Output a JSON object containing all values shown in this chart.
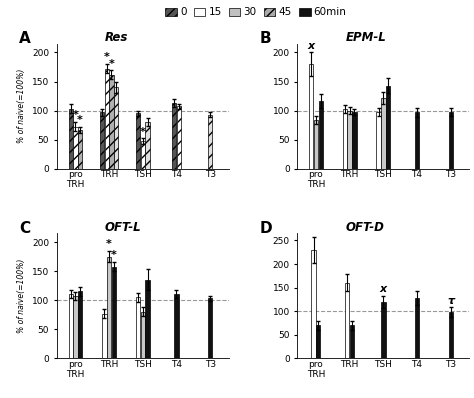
{
  "time_labels": [
    "0",
    "15",
    "30",
    "45",
    "60min"
  ],
  "patterns": [
    {
      "color": "#606060",
      "hatch": "///",
      "edgecolor": "#000000"
    },
    {
      "color": "#ffffff",
      "hatch": "///",
      "edgecolor": "#000000"
    },
    {
      "color": "#b0b0b0",
      "hatch": "///",
      "edgecolor": "#000000"
    },
    {
      "color": "#ffffff",
      "hatch": "///",
      "edgecolor": "#000000"
    },
    {
      "color": "#111111",
      "hatch": "",
      "edgecolor": "#000000"
    }
  ],
  "panels": {
    "A": {
      "title": "Res",
      "label": "A",
      "ylim": [
        0,
        215
      ],
      "yticks": [
        0,
        50,
        100,
        150,
        200
      ],
      "ylabel": "% of naive(=100%)",
      "cats": [
        "proTRH",
        "TRH",
        "TSH",
        "T4",
        "T3"
      ],
      "bars": {
        "proTRH": [
          [
            0,
            103,
            8,
            false
          ],
          [
            1,
            72,
            8,
            true
          ],
          [
            2,
            67,
            5,
            true
          ]
        ],
        "TRH": [
          [
            0,
            97,
            6,
            false
          ],
          [
            1,
            172,
            8,
            true
          ],
          [
            2,
            162,
            7,
            true
          ],
          [
            3,
            140,
            10,
            false
          ]
        ],
        "TSH": [
          [
            0,
            95,
            5,
            false
          ],
          [
            1,
            47,
            5,
            true
          ],
          [
            3,
            80,
            7,
            false
          ]
        ],
        "T4": [
          [
            0,
            113,
            7,
            false
          ],
          [
            1,
            107,
            5,
            false
          ]
        ],
        "T3": [
          [
            3,
            93,
            5,
            false
          ]
        ]
      },
      "annots": {
        "proTRH": [
          [
            1,
            "*"
          ],
          [
            2,
            "*"
          ]
        ],
        "TRH": [
          [
            1,
            "*"
          ],
          [
            2,
            "*"
          ]
        ],
        "TSH": [
          [
            1,
            "*"
          ]
        ]
      }
    },
    "B": {
      "title": "EPM-L",
      "label": "B",
      "ylim": [
        0,
        215
      ],
      "yticks": [
        0,
        50,
        100,
        150,
        200
      ],
      "ylabel": "% of naive (=100%)",
      "cats": [
        "proTRH",
        "TRH",
        "TSH",
        "T4",
        "T3"
      ],
      "bars": {
        "proTRH": [
          [
            1,
            180,
            20,
            false
          ],
          [
            2,
            83,
            7,
            false
          ],
          [
            4,
            117,
            12,
            false
          ]
        ],
        "TRH": [
          [
            1,
            102,
            7,
            false
          ],
          [
            2,
            100,
            6,
            false
          ],
          [
            4,
            97,
            5,
            false
          ]
        ],
        "TSH": [
          [
            1,
            97,
            7,
            false
          ],
          [
            2,
            122,
            10,
            false
          ],
          [
            4,
            143,
            13,
            false
          ]
        ],
        "T4": [
          [
            4,
            97,
            8,
            false
          ]
        ],
        "T3": [
          [
            4,
            97,
            7,
            false
          ]
        ]
      },
      "annots": {
        "proTRH": [
          [
            0,
            "x"
          ]
        ]
      }
    },
    "C": {
      "title": "OFT-L",
      "label": "C",
      "ylim": [
        0,
        215
      ],
      "yticks": [
        0,
        50,
        100,
        150,
        200
      ],
      "ylabel": "% of naive(=100%)",
      "cats": [
        "proTRH",
        "TRH",
        "TSH",
        "T4",
        "T3"
      ],
      "bars": {
        "proTRH": [
          [
            1,
            110,
            7,
            false
          ],
          [
            2,
            107,
            7,
            false
          ],
          [
            4,
            115,
            8,
            false
          ]
        ],
        "TRH": [
          [
            1,
            77,
            7,
            false
          ],
          [
            2,
            175,
            10,
            true
          ],
          [
            4,
            158,
            8,
            true
          ]
        ],
        "TSH": [
          [
            1,
            105,
            8,
            false
          ],
          [
            2,
            80,
            8,
            false
          ],
          [
            4,
            135,
            18,
            false
          ]
        ],
        "T4": [
          [
            4,
            110,
            7,
            false
          ]
        ],
        "T3": [
          [
            4,
            103,
            5,
            false
          ]
        ]
      },
      "annots": {
        "TRH": [
          [
            1,
            "*"
          ],
          [
            2,
            "*"
          ]
        ]
      }
    },
    "D": {
      "title": "OFT-D",
      "label": "D",
      "ylim": [
        0,
        265
      ],
      "yticks": [
        0,
        50,
        100,
        150,
        200,
        250
      ],
      "ylabel": "% of naive (=100%)",
      "cats": [
        "proTRH",
        "TRH",
        "TSH",
        "T4",
        "T3"
      ],
      "bars": {
        "proTRH": [
          [
            1,
            230,
            28,
            false
          ],
          [
            4,
            70,
            10,
            false
          ]
        ],
        "TRH": [
          [
            1,
            160,
            18,
            false
          ],
          [
            4,
            70,
            10,
            false
          ]
        ],
        "TSH": [
          [
            4,
            120,
            13,
            true
          ]
        ],
        "T4": [
          [
            4,
            128,
            14,
            false
          ]
        ],
        "T3": [
          [
            4,
            98,
            10,
            true
          ]
        ]
      },
      "annots": {
        "TSH": [
          [
            0,
            "x"
          ]
        ],
        "T3": [
          [
            0,
            "τ"
          ]
        ]
      }
    }
  }
}
